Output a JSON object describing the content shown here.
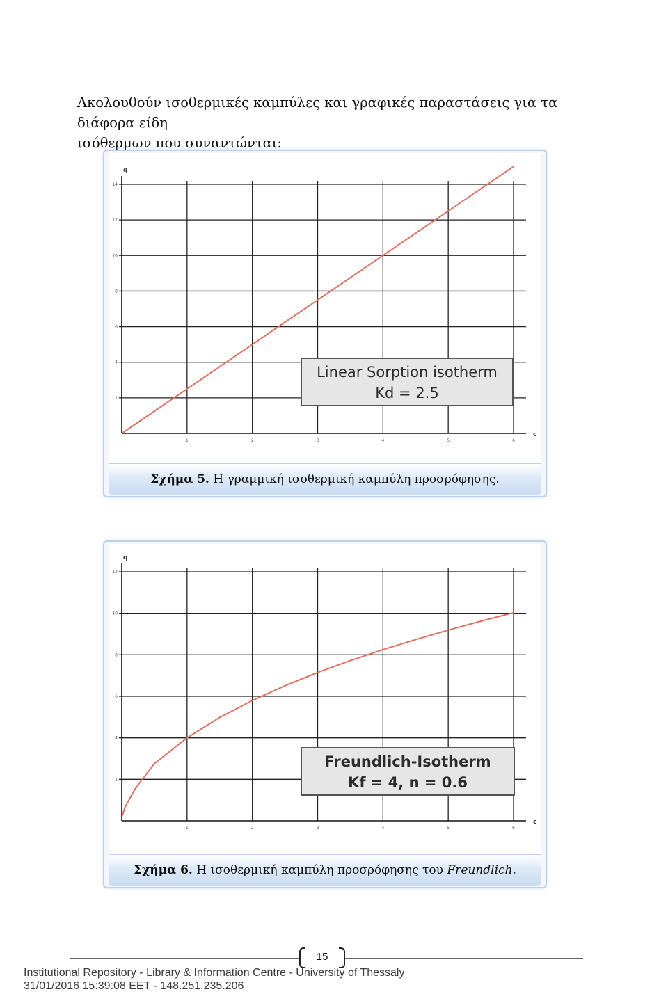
{
  "intro": {
    "line1": "Ακολουθούν ισοθερμικές καμπύλες και γραφικές παραστάσεις για τα διάφορα είδη",
    "line2": "ισόθερμων που συναντώνται:"
  },
  "figures": [
    {
      "caption_bold": "Σχήμα 5.",
      "caption_text": " Η γραμμική ισοθερμική καμπύλη προσρόφησης.",
      "caption_italic": "",
      "legend_line1": "Linear  Sorption isotherm",
      "legend_line2": "Kd = 2.5"
    },
    {
      "caption_bold": "Σχήμα 6.",
      "caption_text": " Η ισοθερμική καμπύλη προσρόφησης του ",
      "caption_italic": "Freundlich.",
      "legend_line1": "Freundlich-Isotherm",
      "legend_line2": "Kf = 4, n = 0.6"
    }
  ],
  "chart_data": [
    {
      "type": "line",
      "xlabel": "c",
      "ylabel": "q",
      "xlim": [
        0,
        6
      ],
      "ylim": [
        0,
        14
      ],
      "x_ticks": [
        "1",
        "2",
        "3",
        "4",
        "5",
        "6"
      ],
      "y_ticks": [
        "2",
        "4",
        "6",
        "8",
        "10",
        "12",
        "14"
      ],
      "grid": true,
      "legend": "bottom-right",
      "series": [
        {
          "x": [
            0,
            6
          ],
          "y": [
            0,
            15
          ],
          "color": "#e07060"
        }
      ]
    },
    {
      "type": "line",
      "xlabel": "c",
      "ylabel": "q",
      "xlim": [
        0,
        6
      ],
      "ylim": [
        0,
        12
      ],
      "x_ticks": [
        "1",
        "2",
        "3",
        "4",
        "5",
        "6"
      ],
      "y_ticks": [
        "2",
        "4",
        "6",
        "8",
        "10",
        "12"
      ],
      "grid": true,
      "legend": "bottom-right",
      "series": [
        {
          "x": [
            0.01,
            0.05,
            0.2,
            0.5,
            1,
            1.5,
            2,
            2.5,
            3,
            3.5,
            4,
            4.5,
            5,
            5.5,
            6
          ],
          "y": [
            0.25,
            0.66,
            1.52,
            2.76,
            4.0,
            4.98,
            5.8,
            6.51,
            7.15,
            7.72,
            8.25,
            8.73,
            9.19,
            9.62,
            10.03
          ],
          "color": "#e07060"
        }
      ]
    }
  ],
  "footer": {
    "page_number": "15",
    "repo_line1": "Institutional Repository - Library & Information Centre - University of Thessaly",
    "repo_line2": "31/01/2016 15:39:08 EET - 148.251.235.206"
  }
}
